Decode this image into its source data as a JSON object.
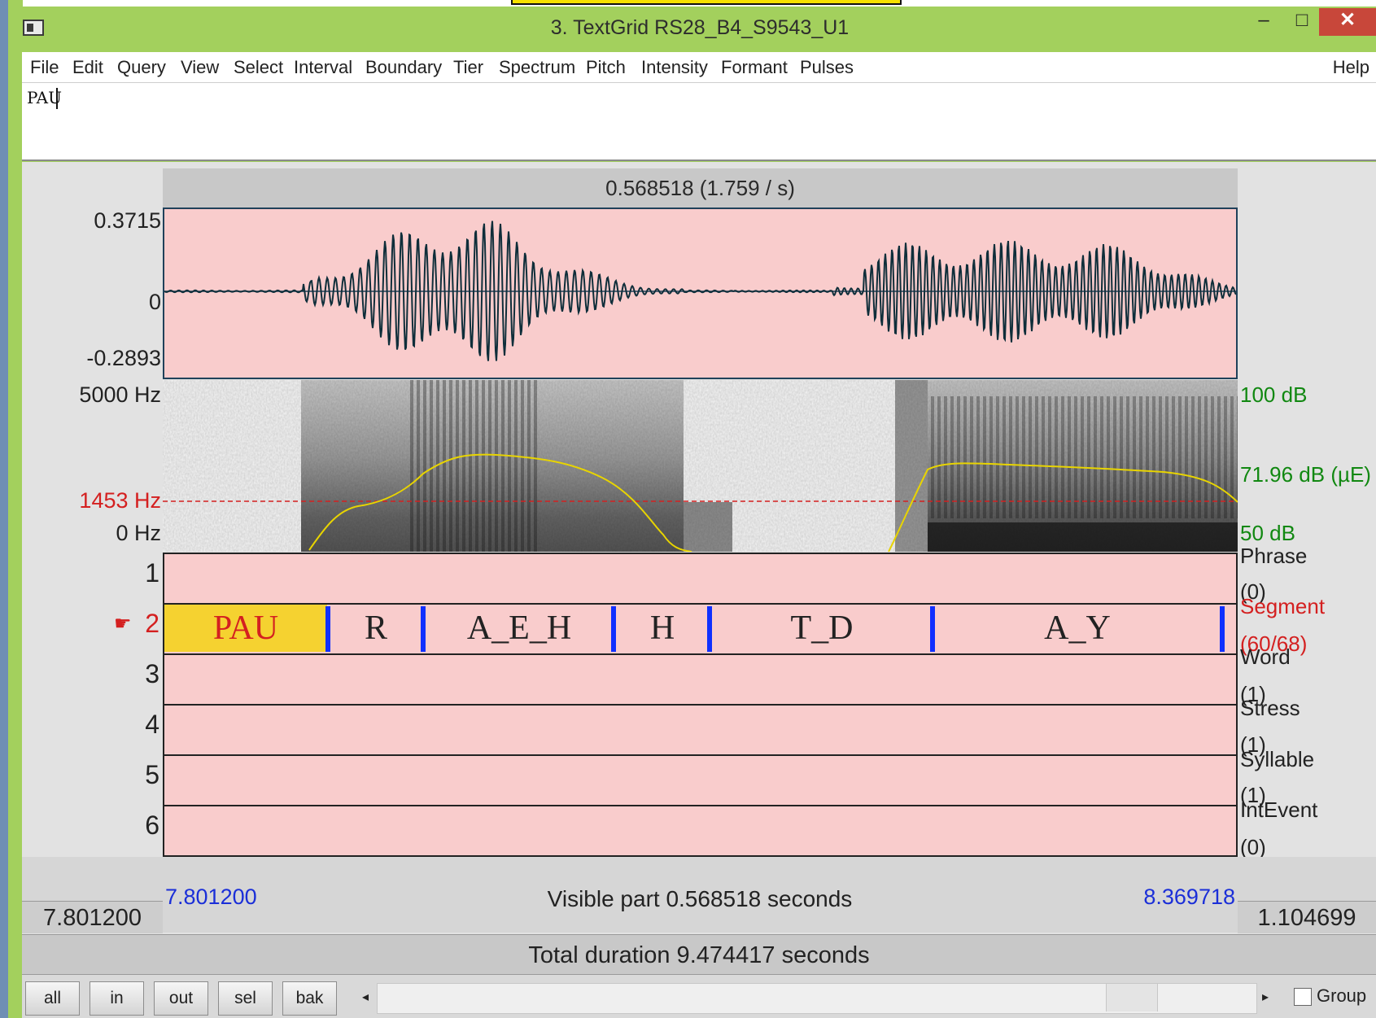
{
  "window": {
    "title": "3. TextGrid RS28_B4_S9543_U1",
    "minimize": "–",
    "maximize": "□",
    "close": "✕"
  },
  "menu": {
    "items": [
      "File",
      "Edit",
      "Query",
      "View",
      "Select",
      "Interval",
      "Boundary",
      "Tier",
      "Spectrum",
      "Pitch",
      "Intensity",
      "Formant",
      "Pulses"
    ],
    "help": "Help"
  },
  "editor": {
    "text": "PAU"
  },
  "selection": {
    "header": "0.568518 (1.759 / s)"
  },
  "waveform": {
    "top": "0.3715",
    "zero": "0",
    "bottom": "-0.2893"
  },
  "spectrogram": {
    "top_freq": "5000 Hz",
    "cursor_freq": "1453 Hz",
    "bottom_freq": "0 Hz",
    "intensity_top": "100 dB",
    "intensity_mid": "71.96 dB (µE)",
    "intensity_bottom": "50 dB"
  },
  "tiers": [
    {
      "number": "1",
      "name": "Phrase",
      "count": "(0)"
    },
    {
      "number": "2",
      "name": "Segment",
      "count": "(60/68)"
    },
    {
      "number": "3",
      "name": "Word",
      "count": "(1)"
    },
    {
      "number": "4",
      "name": "Stress",
      "count": "(1)"
    },
    {
      "number": "5",
      "name": "Syllable",
      "count": "(1)"
    },
    {
      "number": "6",
      "name": "IntEvent",
      "count": "(0)"
    }
  ],
  "segments": [
    "PAU",
    "R",
    "A_E_H",
    "H",
    "T_D",
    "A_Y"
  ],
  "times": {
    "visible_start": "7.801200",
    "visible_label": "Visible part 0.568518 seconds",
    "visible_end": "8.369718",
    "left": "7.801200",
    "right": "1.104699",
    "total": "Total duration 9.474417 seconds"
  },
  "buttons": {
    "all": "all",
    "in": "in",
    "out": "out",
    "sel": "sel",
    "bak": "bak",
    "group": "Group"
  },
  "colors": {
    "selection_pink": "#f9cccc",
    "selected_interval": "#f5d230",
    "boundary": "#1030ff",
    "cursor": "#d42020",
    "intensity_curve": "#e8d400",
    "intensity_labels": "#118811"
  }
}
